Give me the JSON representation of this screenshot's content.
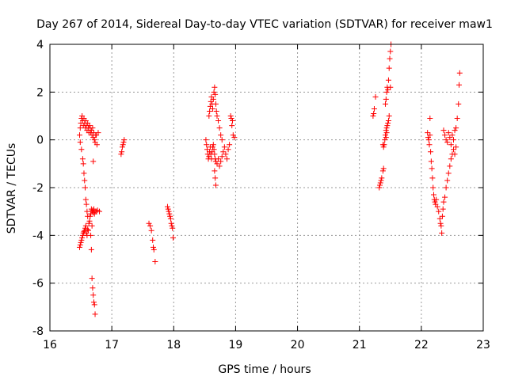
{
  "chart_data": {
    "type": "scatter",
    "title": "Day 267 of 2014, Sidereal Day-to-day VTEC variation (SDTVAR) for receiver maw1",
    "xlabel": "GPS time / hours",
    "ylabel": "SDTVAR / TECUs",
    "xlim": [
      16,
      23
    ],
    "ylim": [
      -8,
      4
    ],
    "xticks": [
      "16",
      "17",
      "18",
      "19",
      "20",
      "21",
      "22",
      "23"
    ],
    "yticks": [
      "-8",
      "-6",
      "-4",
      "-2",
      "0",
      "2",
      "4"
    ],
    "grid": true,
    "marker": "+",
    "color": "#ff0000",
    "points": [
      [
        16.48,
        -4.5
      ],
      [
        16.49,
        -4.4
      ],
      [
        16.5,
        -4.3
      ],
      [
        16.51,
        -4.2
      ],
      [
        16.52,
        -4.1
      ],
      [
        16.53,
        -4.0
      ],
      [
        16.54,
        -3.9
      ],
      [
        16.55,
        -3.85
      ],
      [
        16.56,
        -3.8
      ],
      [
        16.57,
        -3.7
      ],
      [
        16.58,
        -3.6
      ],
      [
        16.59,
        -3.9
      ],
      [
        16.6,
        -4.0
      ],
      [
        16.61,
        -3.75
      ],
      [
        16.62,
        -3.8
      ],
      [
        16.63,
        -3.5
      ],
      [
        16.64,
        -3.4
      ],
      [
        16.65,
        -3.2
      ],
      [
        16.66,
        -3.1
      ],
      [
        16.67,
        -2.9
      ],
      [
        16.68,
        -3.0
      ],
      [
        16.69,
        -2.95
      ],
      [
        16.7,
        -3.05
      ],
      [
        16.71,
        -2.9
      ],
      [
        16.72,
        -3.1
      ],
      [
        16.73,
        -3.0
      ],
      [
        16.75,
        -3.0
      ],
      [
        16.77,
        -2.95
      ],
      [
        16.8,
        -3.0
      ],
      [
        16.66,
        -4.0
      ],
      [
        16.67,
        -4.6
      ],
      [
        16.68,
        -3.6
      ],
      [
        16.48,
        0.2
      ],
      [
        16.49,
        0.5
      ],
      [
        16.5,
        0.7
      ],
      [
        16.51,
        0.9
      ],
      [
        16.52,
        1.0
      ],
      [
        16.53,
        0.8
      ],
      [
        16.54,
        0.6
      ],
      [
        16.55,
        0.9
      ],
      [
        16.56,
        0.7
      ],
      [
        16.57,
        0.5
      ],
      [
        16.58,
        0.8
      ],
      [
        16.59,
        0.6
      ],
      [
        16.6,
        0.4
      ],
      [
        16.61,
        0.7
      ],
      [
        16.62,
        0.5
      ],
      [
        16.63,
        0.3
      ],
      [
        16.64,
        0.6
      ],
      [
        16.65,
        0.5
      ],
      [
        16.66,
        0.3
      ],
      [
        16.67,
        0.4
      ],
      [
        16.68,
        0.2
      ],
      [
        16.69,
        0.5
      ],
      [
        16.7,
        0.1
      ],
      [
        16.71,
        0.3
      ],
      [
        16.72,
        0.0
      ],
      [
        16.73,
        -0.1
      ],
      [
        16.74,
        0.2
      ],
      [
        16.75,
        0.2
      ],
      [
        16.76,
        -0.2
      ],
      [
        16.78,
        0.3
      ],
      [
        16.49,
        -0.1
      ],
      [
        16.51,
        -0.4
      ],
      [
        16.53,
        -0.8
      ],
      [
        16.54,
        -1.0
      ],
      [
        16.55,
        -1.4
      ],
      [
        16.56,
        -1.7
      ],
      [
        16.57,
        -2.0
      ],
      [
        16.58,
        -2.5
      ],
      [
        16.59,
        -2.7
      ],
      [
        16.6,
        -3.0
      ],
      [
        16.61,
        -3.2
      ],
      [
        16.7,
        -0.9
      ],
      [
        16.68,
        -5.8
      ],
      [
        16.69,
        -6.2
      ],
      [
        16.7,
        -6.5
      ],
      [
        16.71,
        -6.8
      ],
      [
        16.72,
        -6.9
      ],
      [
        16.73,
        -7.3
      ],
      [
        17.15,
        -0.6
      ],
      [
        17.16,
        -0.5
      ],
      [
        17.17,
        -0.3
      ],
      [
        17.18,
        -0.2
      ],
      [
        17.19,
        -0.1
      ],
      [
        17.2,
        0.0
      ],
      [
        17.6,
        -3.5
      ],
      [
        17.62,
        -3.6
      ],
      [
        17.64,
        -3.8
      ],
      [
        17.66,
        -4.2
      ],
      [
        17.67,
        -4.5
      ],
      [
        17.68,
        -4.6
      ],
      [
        17.7,
        -5.1
      ],
      [
        17.9,
        -2.8
      ],
      [
        17.91,
        -2.9
      ],
      [
        17.92,
        -3.0
      ],
      [
        17.93,
        -3.1
      ],
      [
        17.94,
        -3.2
      ],
      [
        17.95,
        -3.3
      ],
      [
        17.96,
        -3.5
      ],
      [
        17.97,
        -3.6
      ],
      [
        17.98,
        -3.7
      ],
      [
        17.99,
        -4.1
      ],
      [
        18.52,
        0.0
      ],
      [
        18.53,
        -0.2
      ],
      [
        18.54,
        -0.4
      ],
      [
        18.55,
        -0.6
      ],
      [
        18.56,
        -0.8
      ],
      [
        18.57,
        -0.7
      ],
      [
        18.58,
        -0.5
      ],
      [
        18.59,
        -0.3
      ],
      [
        18.6,
        -0.6
      ],
      [
        18.61,
        -0.8
      ],
      [
        18.62,
        -0.5
      ],
      [
        18.63,
        -0.3
      ],
      [
        18.64,
        -0.2
      ],
      [
        18.65,
        -0.4
      ],
      [
        18.66,
        -0.6
      ],
      [
        18.67,
        -0.8
      ],
      [
        18.68,
        -0.9
      ],
      [
        18.7,
        -1.0
      ],
      [
        18.72,
        -0.8
      ],
      [
        18.74,
        -1.1
      ],
      [
        18.76,
        -0.9
      ],
      [
        18.78,
        -0.7
      ],
      [
        18.8,
        -0.5
      ],
      [
        18.82,
        -0.3
      ],
      [
        18.84,
        -0.6
      ],
      [
        18.86,
        -0.8
      ],
      [
        18.88,
        -0.4
      ],
      [
        18.9,
        -0.2
      ],
      [
        18.57,
        1.0
      ],
      [
        18.58,
        1.2
      ],
      [
        18.59,
        1.4
      ],
      [
        18.6,
        1.6
      ],
      [
        18.61,
        1.8
      ],
      [
        18.62,
        1.5
      ],
      [
        18.63,
        1.3
      ],
      [
        18.64,
        1.7
      ],
      [
        18.65,
        2.0
      ],
      [
        18.66,
        2.2
      ],
      [
        18.67,
        1.9
      ],
      [
        18.68,
        1.5
      ],
      [
        18.69,
        1.2
      ],
      [
        18.7,
        1.0
      ],
      [
        18.72,
        0.8
      ],
      [
        18.74,
        0.5
      ],
      [
        18.76,
        0.2
      ],
      [
        18.78,
        0.0
      ],
      [
        18.66,
        -1.3
      ],
      [
        18.67,
        -1.6
      ],
      [
        18.68,
        -1.9
      ],
      [
        18.92,
        1.0
      ],
      [
        18.93,
        0.9
      ],
      [
        18.94,
        0.6
      ],
      [
        18.95,
        0.8
      ],
      [
        18.96,
        0.2
      ],
      [
        18.98,
        0.1
      ],
      [
        21.22,
        1.0
      ],
      [
        21.23,
        1.1
      ],
      [
        21.24,
        1.3
      ],
      [
        21.26,
        1.8
      ],
      [
        21.32,
        -2.0
      ],
      [
        21.33,
        -1.9
      ],
      [
        21.34,
        -1.8
      ],
      [
        21.35,
        -1.7
      ],
      [
        21.36,
        -1.6
      ],
      [
        21.38,
        -1.3
      ],
      [
        21.39,
        -1.2
      ],
      [
        21.38,
        -0.2
      ],
      [
        21.39,
        -0.3
      ],
      [
        21.4,
        -0.2
      ],
      [
        21.41,
        0.0
      ],
      [
        21.42,
        0.2
      ],
      [
        21.43,
        0.4
      ],
      [
        21.44,
        0.5
      ],
      [
        21.45,
        0.6
      ],
      [
        21.46,
        0.7
      ],
      [
        21.47,
        0.8
      ],
      [
        21.48,
        1.0
      ],
      [
        21.43,
        0.1
      ],
      [
        21.44,
        0.3
      ],
      [
        21.42,
        1.5
      ],
      [
        21.43,
        1.7
      ],
      [
        21.44,
        2.0
      ],
      [
        21.45,
        2.2
      ],
      [
        21.46,
        2.1
      ],
      [
        21.47,
        2.5
      ],
      [
        21.48,
        3.0
      ],
      [
        21.49,
        3.4
      ],
      [
        21.5,
        3.7
      ],
      [
        21.51,
        4.0
      ],
      [
        21.5,
        2.2
      ],
      [
        22.1,
        0.3
      ],
      [
        22.11,
        0.1
      ],
      [
        22.12,
        0.0
      ],
      [
        22.13,
        -0.2
      ],
      [
        22.14,
        0.2
      ],
      [
        22.15,
        -0.5
      ],
      [
        22.16,
        -0.9
      ],
      [
        22.17,
        -1.2
      ],
      [
        22.18,
        -1.6
      ],
      [
        22.19,
        -2.0
      ],
      [
        22.2,
        -2.3
      ],
      [
        22.21,
        -2.5
      ],
      [
        22.22,
        -2.6
      ],
      [
        22.23,
        -2.7
      ],
      [
        22.24,
        -2.5
      ],
      [
        22.14,
        0.9
      ],
      [
        22.26,
        -2.8
      ],
      [
        22.28,
        -3.0
      ],
      [
        22.3,
        -3.3
      ],
      [
        22.31,
        -3.5
      ],
      [
        22.32,
        -3.6
      ],
      [
        22.33,
        -3.9
      ],
      [
        22.34,
        -3.2
      ],
      [
        22.35,
        -2.9
      ],
      [
        22.36,
        -2.6
      ],
      [
        22.38,
        -2.4
      ],
      [
        22.4,
        -2.0
      ],
      [
        22.42,
        -1.7
      ],
      [
        22.44,
        -1.4
      ],
      [
        22.46,
        -1.1
      ],
      [
        22.48,
        -0.8
      ],
      [
        22.5,
        -0.6
      ],
      [
        22.52,
        -0.4
      ],
      [
        22.54,
        -0.6
      ],
      [
        22.56,
        -0.3
      ],
      [
        22.36,
        0.4
      ],
      [
        22.38,
        0.2
      ],
      [
        22.4,
        0.0
      ],
      [
        22.42,
        -0.1
      ],
      [
        22.44,
        0.3
      ],
      [
        22.46,
        0.1
      ],
      [
        22.48,
        -0.2
      ],
      [
        22.5,
        0.2
      ],
      [
        22.52,
        0.0
      ],
      [
        22.54,
        0.4
      ],
      [
        22.56,
        0.5
      ],
      [
        22.58,
        0.9
      ],
      [
        22.6,
        1.5
      ],
      [
        22.61,
        2.3
      ],
      [
        22.62,
        2.8
      ]
    ]
  }
}
